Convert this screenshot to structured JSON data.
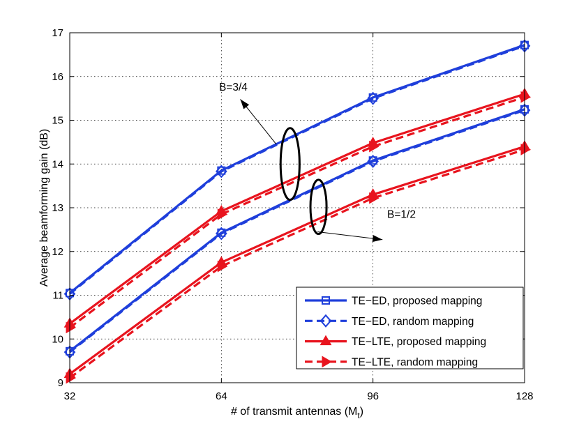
{
  "chart_data": {
    "type": "line",
    "title": "",
    "xlabel": "# of transmit antennas (M",
    "xlabel_subscript": "t",
    "xlabel_suffix": ")",
    "ylabel": "Average beamforming gain (dB)",
    "x": [
      32,
      64,
      96,
      128
    ],
    "xlim": [
      32,
      128
    ],
    "ylim": [
      9,
      17
    ],
    "xticks": [
      32,
      64,
      96,
      128
    ],
    "yticks": [
      9,
      10,
      11,
      12,
      13,
      14,
      15,
      16,
      17
    ],
    "grid": true,
    "legend_position": "bottom-right",
    "series": [
      {
        "name": "TE−ED, proposed mapping",
        "color": "#1f3fdb",
        "dash": "solid",
        "marker": "square",
        "values": [
          11.05,
          13.85,
          15.52,
          16.72
        ]
      },
      {
        "name": "TE−ED, random mapping",
        "color": "#1f3fdb",
        "dash": "dashed",
        "marker": "diamond",
        "values": [
          11.03,
          13.83,
          15.5,
          16.7
        ]
      },
      {
        "name": "TE−ED, proposed mapping",
        "color": "#1f3fdb",
        "dash": "solid",
        "marker": "square",
        "values": [
          9.72,
          12.43,
          14.08,
          15.25
        ]
      },
      {
        "name": "TE−ED, random mapping",
        "color": "#1f3fdb",
        "dash": "dashed",
        "marker": "diamond",
        "values": [
          9.7,
          12.41,
          14.06,
          15.23
        ]
      },
      {
        "name": "TE−LTE, proposed mapping",
        "color": "#e8141e",
        "dash": "solid",
        "marker": "triangle-up",
        "values": [
          10.35,
          12.92,
          14.48,
          15.6
        ]
      },
      {
        "name": "TE−LTE, random mapping",
        "color": "#e8141e",
        "dash": "dashed",
        "marker": "triangle-right",
        "values": [
          10.26,
          12.85,
          14.4,
          15.53
        ]
      },
      {
        "name": "TE−LTE, proposed mapping",
        "color": "#e8141e",
        "dash": "solid",
        "marker": "triangle-up",
        "values": [
          9.2,
          11.75,
          13.3,
          14.4
        ]
      },
      {
        "name": "TE−LTE, random mapping",
        "color": "#e8141e",
        "dash": "dashed",
        "marker": "triangle-right",
        "values": [
          9.11,
          11.66,
          13.22,
          14.33
        ]
      }
    ],
    "legend": [
      {
        "label": "TE−ED, proposed mapping",
        "color": "#1f3fdb",
        "dash": "solid",
        "marker": "square"
      },
      {
        "label": "TE−ED, random mapping",
        "color": "#1f3fdb",
        "dash": "dashed",
        "marker": "diamond"
      },
      {
        "label": "TE−LTE, proposed mapping",
        "color": "#e8141e",
        "dash": "solid",
        "marker": "triangle-up"
      },
      {
        "label": "TE−LTE, random mapping",
        "color": "#e8141e",
        "dash": "dashed",
        "marker": "triangle-right"
      }
    ],
    "annotations": [
      {
        "text": "B=3/4",
        "ellipse_center": [
          78.5,
          14.0
        ],
        "ellipse_rx": 2.0,
        "ellipse_ry": 0.82,
        "text_at": [
          63.5,
          15.68
        ],
        "arrow_from": [
          75.6,
          14.45
        ],
        "arrow_to": [
          68.0,
          15.48
        ]
      },
      {
        "text": "B=1/2",
        "ellipse_center": [
          84.5,
          13.02
        ],
        "ellipse_rx": 1.7,
        "ellipse_ry": 0.62,
        "text_at": [
          99.0,
          12.77
        ],
        "arrow_from": [
          84.3,
          12.45
        ],
        "arrow_to": [
          98.0,
          12.27
        ]
      }
    ]
  }
}
